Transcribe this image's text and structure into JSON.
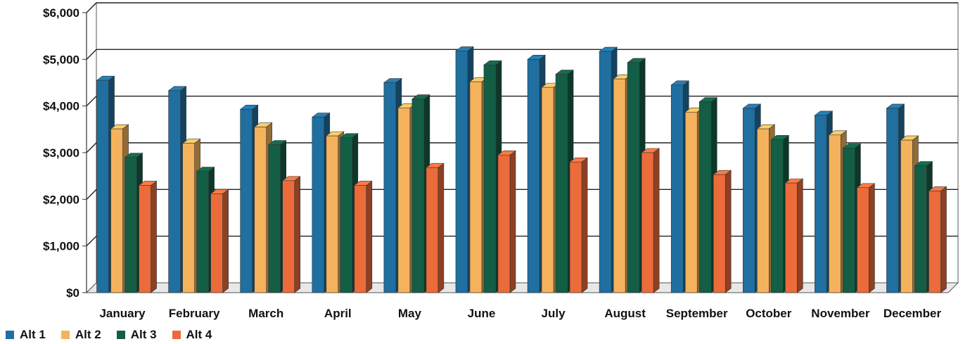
{
  "chart_data": {
    "type": "bar",
    "style": "3d-clustered-column",
    "categories": [
      "January",
      "February",
      "March",
      "April",
      "May",
      "June",
      "July",
      "August",
      "September",
      "October",
      "November",
      "December"
    ],
    "series": [
      {
        "name": "Alt 1",
        "color": "#1f6fa0",
        "values": [
          4550,
          4330,
          3930,
          3760,
          4500,
          5180,
          5000,
          5170,
          4450,
          3950,
          3800,
          3950
        ]
      },
      {
        "name": "Alt 2",
        "color": "#f5b25c",
        "values": [
          3510,
          3200,
          3550,
          3360,
          3960,
          4520,
          4400,
          4580,
          3870,
          3510,
          3380,
          3270
        ]
      },
      {
        "name": "Alt 3",
        "color": "#135e45",
        "values": [
          2900,
          2600,
          3170,
          3320,
          4150,
          4880,
          4680,
          4930,
          4090,
          3280,
          3100,
          2720
        ]
      },
      {
        "name": "Alt 4",
        "color": "#ec6b3a",
        "values": [
          2300,
          2120,
          2400,
          2300,
          2680,
          2950,
          2800,
          3000,
          2530,
          2350,
          2250,
          2180
        ]
      }
    ],
    "y_ticks": [
      "$0",
      "$1,000",
      "$2,000",
      "$3,000",
      "$4,000",
      "$5,000",
      "$6,000"
    ],
    "ylim": [
      0,
      6000
    ],
    "grid": true,
    "legend_position": "bottom-left"
  }
}
